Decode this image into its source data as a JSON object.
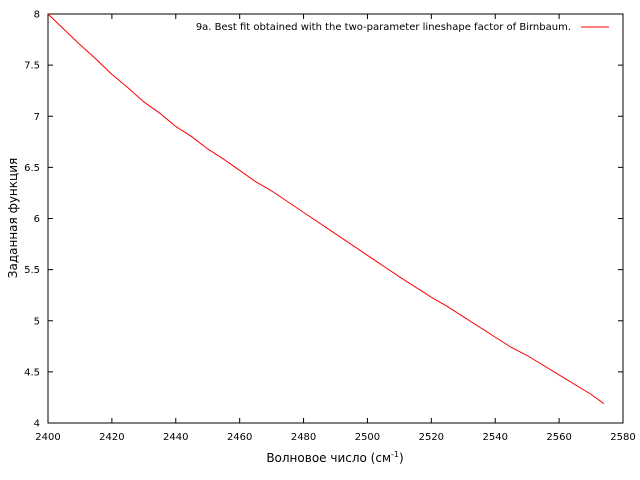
{
  "chart_data": {
    "type": "line",
    "title": "",
    "xlabel": "Волновое число (см",
    "xlabel_sup": "-1",
    "xlabel_close": ")",
    "ylabel": "Заданная функция",
    "xlim": [
      2400,
      2580
    ],
    "ylim": [
      4,
      8
    ],
    "xticks": [
      2400,
      2420,
      2440,
      2460,
      2480,
      2500,
      2520,
      2540,
      2560,
      2580
    ],
    "yticks": [
      4,
      4.5,
      5,
      5.5,
      6,
      6.5,
      7,
      7.5,
      8
    ],
    "grid": false,
    "legend_position": "top-right",
    "series": [
      {
        "name": "9a. Best fit obtained with the two-parameter lineshape factor of Birnbaum.",
        "color": "#ff0000",
        "x": [
          2400,
          2405,
          2410,
          2415,
          2420,
          2425,
          2430,
          2435,
          2440,
          2445,
          2450,
          2455,
          2460,
          2465,
          2470,
          2480,
          2490,
          2500,
          2510,
          2520,
          2525,
          2530,
          2540,
          2545,
          2550,
          2560,
          2570,
          2574
        ],
        "y": [
          8.0,
          7.85,
          7.7,
          7.56,
          7.41,
          7.28,
          7.14,
          7.03,
          6.9,
          6.8,
          6.68,
          6.58,
          6.47,
          6.36,
          6.27,
          6.06,
          5.85,
          5.64,
          5.43,
          5.23,
          5.14,
          5.04,
          4.84,
          4.74,
          4.66,
          4.47,
          4.28,
          4.19
        ]
      }
    ]
  }
}
